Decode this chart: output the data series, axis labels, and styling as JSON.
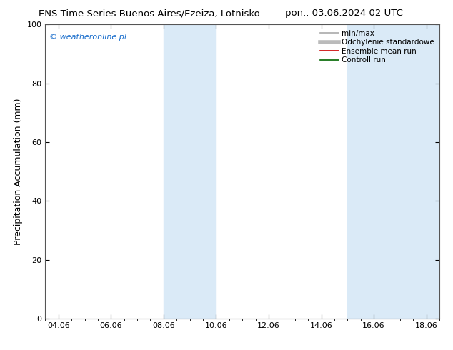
{
  "title_left": "ENS Time Series Buenos Aires/Ezeiza, Lotnisko",
  "title_right": "pon.. 03.06.2024 02 UTC",
  "ylabel": "Precipitation Accumulation (mm)",
  "watermark": "© weatheronline.pl",
  "watermark_color": "#1a6ecc",
  "ylim": [
    0,
    100
  ],
  "yticks": [
    0,
    20,
    40,
    60,
    80,
    100
  ],
  "xtick_labels": [
    "04.06",
    "06.06",
    "08.06",
    "10.06",
    "12.06",
    "14.06",
    "16.06",
    "18.06"
  ],
  "xtick_positions": [
    0,
    2,
    4,
    6,
    8,
    10,
    12,
    14
  ],
  "xlim": [
    -0.5,
    14.5
  ],
  "shaded_regions": [
    {
      "xmin": 4.0,
      "xmax": 6.0,
      "color": "#daeaf7"
    },
    {
      "xmin": 11.0,
      "xmax": 14.5,
      "color": "#daeaf7"
    }
  ],
  "background_color": "#ffffff",
  "plot_bg_color": "#ffffff",
  "legend_items": [
    {
      "label": "min/max",
      "color": "#aaaaaa",
      "lw": 1.2
    },
    {
      "label": "Odchylenie standardowe",
      "color": "#bbbbbb",
      "lw": 4
    },
    {
      "label": "Ensemble mean run",
      "color": "#cc0000",
      "lw": 1.2
    },
    {
      "label": "Controll run",
      "color": "#006600",
      "lw": 1.2
    }
  ],
  "title_fontsize": 9.5,
  "ylabel_fontsize": 9,
  "tick_fontsize": 8,
  "watermark_fontsize": 8,
  "legend_fontsize": 7.5,
  "fig_width": 6.34,
  "fig_height": 4.9,
  "dpi": 100
}
